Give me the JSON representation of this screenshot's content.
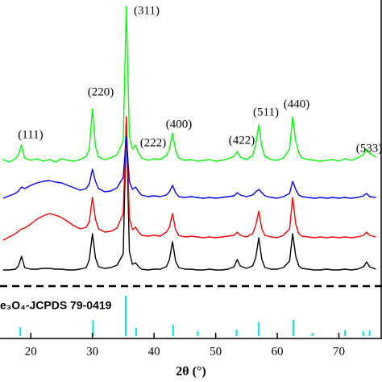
{
  "chart_data": [
    {
      "type": "line",
      "xlim": [
        15,
        77
      ],
      "ylim": [
        0,
        350
      ],
      "x": [
        15.5,
        16.5,
        17.5,
        18,
        18.5,
        19,
        20,
        21,
        22,
        23,
        24,
        25,
        26,
        27,
        28,
        29,
        29.5,
        30,
        30.5,
        31,
        32,
        33,
        34,
        35,
        35.5,
        36,
        36.5,
        37,
        37.5,
        38,
        39,
        40,
        41,
        42,
        42.5,
        43,
        43.5,
        44,
        45,
        46,
        47,
        48,
        49,
        50,
        51,
        52,
        53,
        53.5,
        54,
        55,
        56,
        56.5,
        57,
        57.5,
        58,
        59,
        60,
        61,
        62,
        62.5,
        63,
        63.5,
        64,
        65,
        66,
        67,
        68,
        69,
        70,
        71,
        72,
        73,
        74,
        74.5,
        75,
        76
      ],
      "series": [
        {
          "color": "#000000",
          "values": [
            15,
            15,
            16,
            20,
            32,
            18,
            16,
            16,
            17,
            17,
            16,
            16,
            15,
            15,
            16,
            18,
            28,
            60,
            30,
            19,
            17,
            18,
            21,
            35,
            200,
            38,
            22,
            24,
            19,
            16,
            15,
            16,
            16,
            19,
            28,
            50,
            26,
            18,
            16,
            16,
            15,
            15,
            16,
            15,
            15,
            16,
            19,
            28,
            20,
            17,
            20,
            30,
            55,
            28,
            18,
            16,
            16,
            18,
            26,
            60,
            32,
            20,
            17,
            16,
            15,
            15,
            16,
            15,
            15,
            16,
            15,
            16,
            19,
            25,
            19,
            16
          ]
        },
        {
          "color": "#ff0000",
          "values": [
            52,
            56,
            60,
            63,
            66,
            67,
            72,
            78,
            82,
            85,
            83,
            80,
            75,
            70,
            66,
            68,
            75,
            105,
            78,
            66,
            62,
            63,
            67,
            85,
            205,
            80,
            65,
            68,
            62,
            58,
            57,
            58,
            57,
            62,
            68,
            85,
            65,
            58,
            56,
            57,
            56,
            55,
            56,
            55,
            56,
            57,
            58,
            62,
            58,
            56,
            60,
            70,
            88,
            66,
            58,
            56,
            55,
            58,
            66,
            105,
            72,
            60,
            57,
            56,
            55,
            56,
            55,
            56,
            55,
            56,
            55,
            56,
            58,
            62,
            58,
            56
          ]
        },
        {
          "color": "#0000ff",
          "values": [
            104,
            107,
            110,
            113,
            118,
            116,
            120,
            123,
            125,
            126,
            124,
            123,
            120,
            117,
            114,
            116,
            122,
            140,
            125,
            116,
            112,
            113,
            117,
            130,
            180,
            125,
            115,
            118,
            112,
            108,
            106,
            107,
            106,
            108,
            112,
            120,
            111,
            106,
            105,
            106,
            105,
            104,
            105,
            104,
            105,
            106,
            107,
            111,
            108,
            106,
            108,
            112,
            115,
            111,
            107,
            105,
            104,
            106,
            110,
            125,
            115,
            108,
            106,
            105,
            104,
            105,
            104,
            105,
            104,
            105,
            104,
            105,
            107,
            110,
            106,
            105
          ]
        },
        {
          "color": "#00ff00",
          "values": [
            152,
            149,
            153,
            158,
            170,
            154,
            151,
            153,
            150,
            152,
            149,
            153,
            151,
            150,
            152,
            156,
            165,
            215,
            168,
            155,
            152,
            154,
            158,
            175,
            342,
            180,
            165,
            170,
            160,
            154,
            151,
            153,
            152,
            157,
            165,
            185,
            163,
            154,
            151,
            152,
            150,
            151,
            152,
            150,
            151,
            153,
            156,
            162,
            155,
            152,
            157,
            170,
            195,
            168,
            156,
            152,
            151,
            154,
            165,
            205,
            175,
            160,
            154,
            152,
            151,
            150,
            151,
            152,
            150,
            153,
            151,
            154,
            158,
            165,
            160,
            155
          ]
        }
      ],
      "annotations": [
        "(111)",
        "(220)",
        "(311)",
        "(222)",
        "(400)",
        "(422)",
        "(511)",
        "(440)",
        "(533)"
      ]
    },
    {
      "type": "stick",
      "label": "e₃O₄-JCPDS 79-0419",
      "xlim": [
        15,
        77
      ],
      "ylim": [
        0,
        100
      ],
      "x": [
        18.3,
        30.1,
        35.4,
        37.1,
        43.1,
        47.1,
        53.4,
        57.0,
        62.6,
        65.7,
        71.0,
        74.0,
        75.0
      ],
      "values": [
        22,
        40,
        100,
        20,
        28,
        12,
        16,
        35,
        40,
        8,
        14,
        12,
        14
      ],
      "color": "#00e5ee",
      "xticks": [
        20,
        30,
        40,
        50,
        60,
        70
      ],
      "xlabel": "2θ (°)"
    }
  ]
}
